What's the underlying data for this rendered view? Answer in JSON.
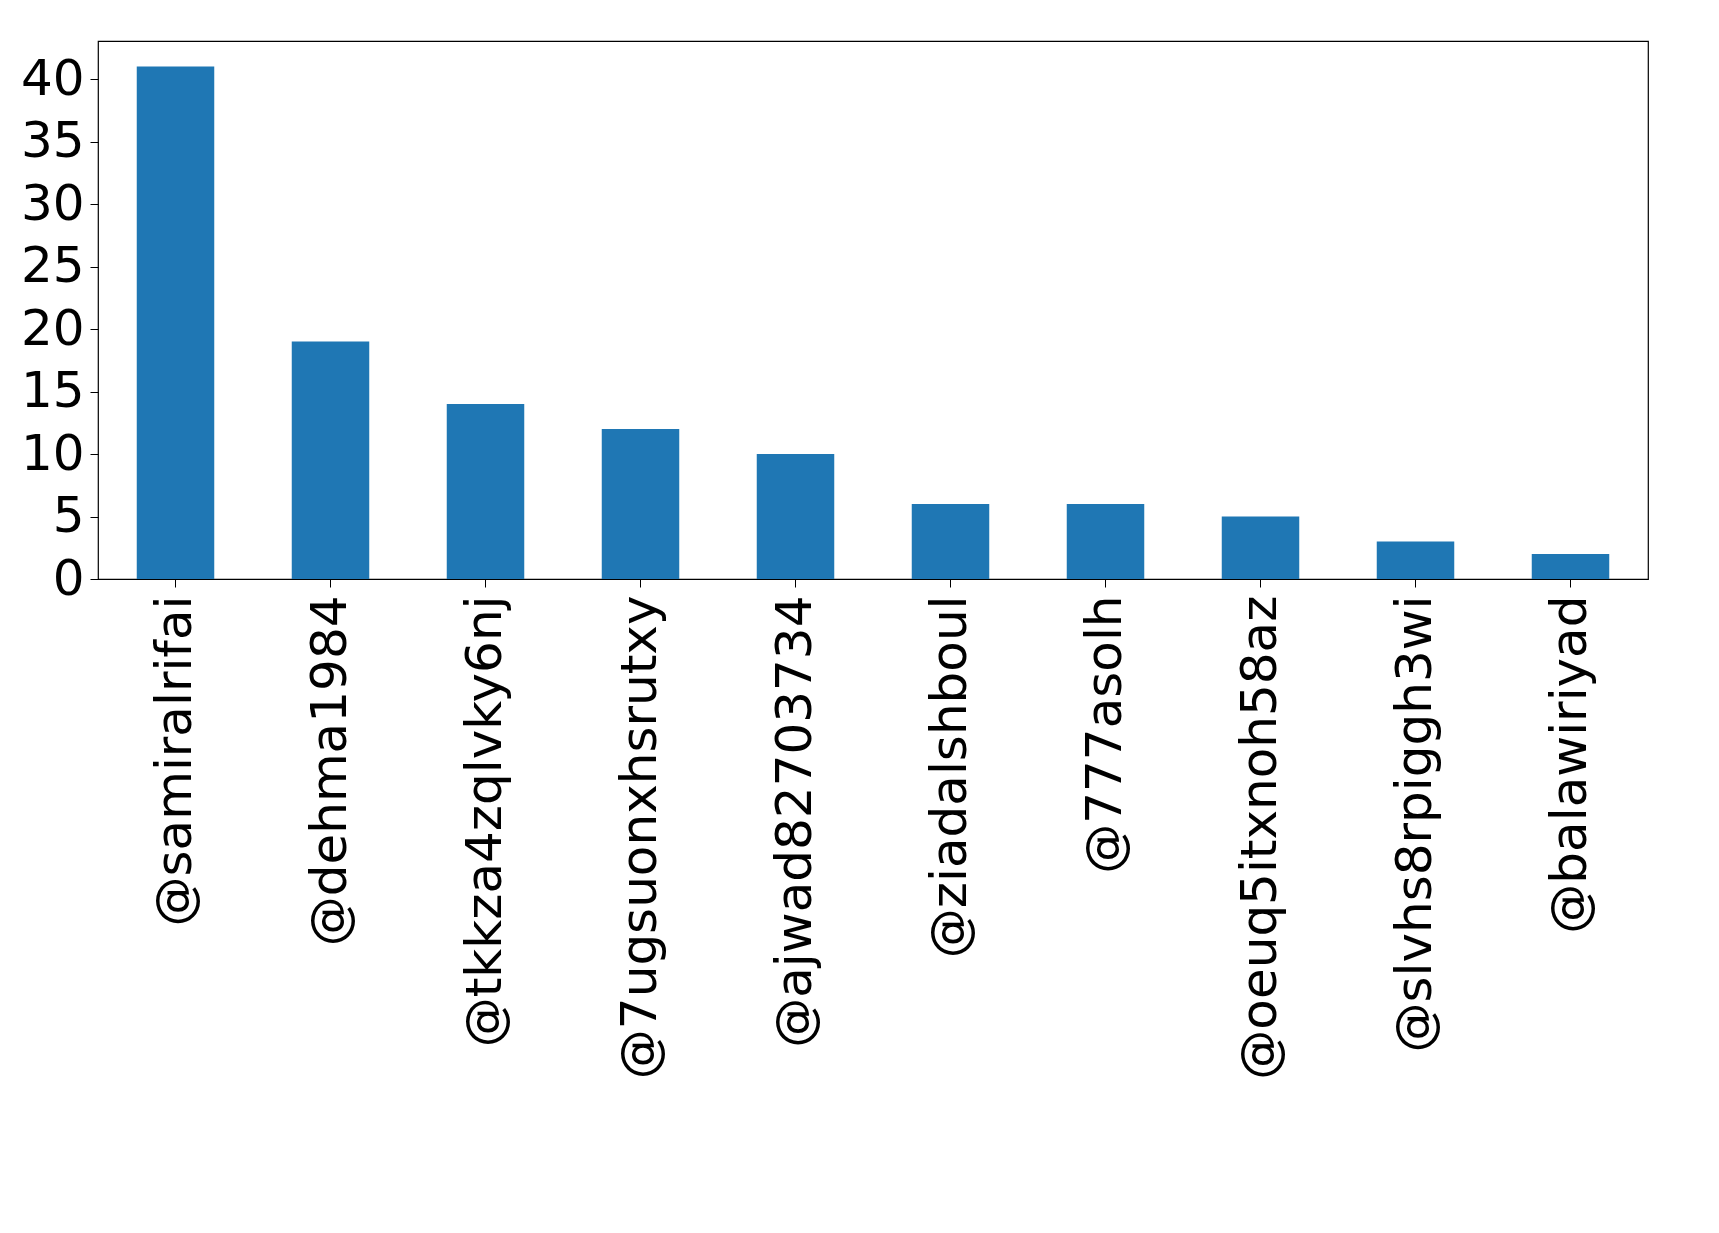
{
  "chart_data": {
    "type": "bar",
    "categories": [
      "@samiralrifai",
      "@dehma1984",
      "@tkkza4zqlvky6nj",
      "@7ugsuonxhsrutxy",
      "@ajwad82703734",
      "@ziadalshboul",
      "@777asolh",
      "@oeuq5itxnoh58az",
      "@slvhs8rpiggh3wi",
      "@balawiriyad"
    ],
    "values": [
      41,
      19,
      14,
      12,
      10,
      6,
      6,
      5,
      3,
      2
    ],
    "color": "#1f77b4",
    "ylim": [
      0,
      43.05
    ],
    "yticks": [
      0,
      5,
      10,
      15,
      20,
      25,
      30,
      35,
      40
    ],
    "grid": false
  }
}
